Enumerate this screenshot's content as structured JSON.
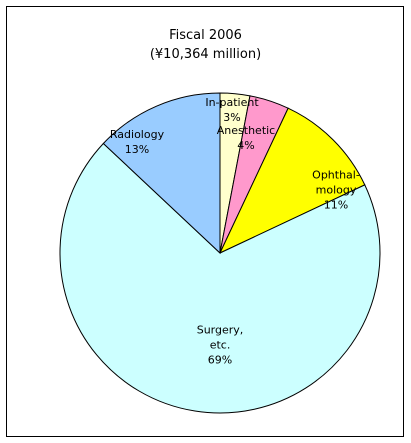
{
  "chart_data": {
    "type": "pie",
    "title": "Fiscal 2006",
    "subtitle": "(¥10,364 million)",
    "categories": [
      "In-patient",
      "Anesthetic",
      "Ophthal-\nmology",
      "Surgery,\netc.",
      "Radiology"
    ],
    "values": [
      3,
      4,
      11,
      69,
      13
    ],
    "value_labels": [
      "3%",
      "4%",
      "11%",
      "69%",
      "13%"
    ],
    "colors": [
      "#ffffcc",
      "#ff99cc",
      "#ffff00",
      "#ccffff",
      "#99ccff"
    ]
  }
}
